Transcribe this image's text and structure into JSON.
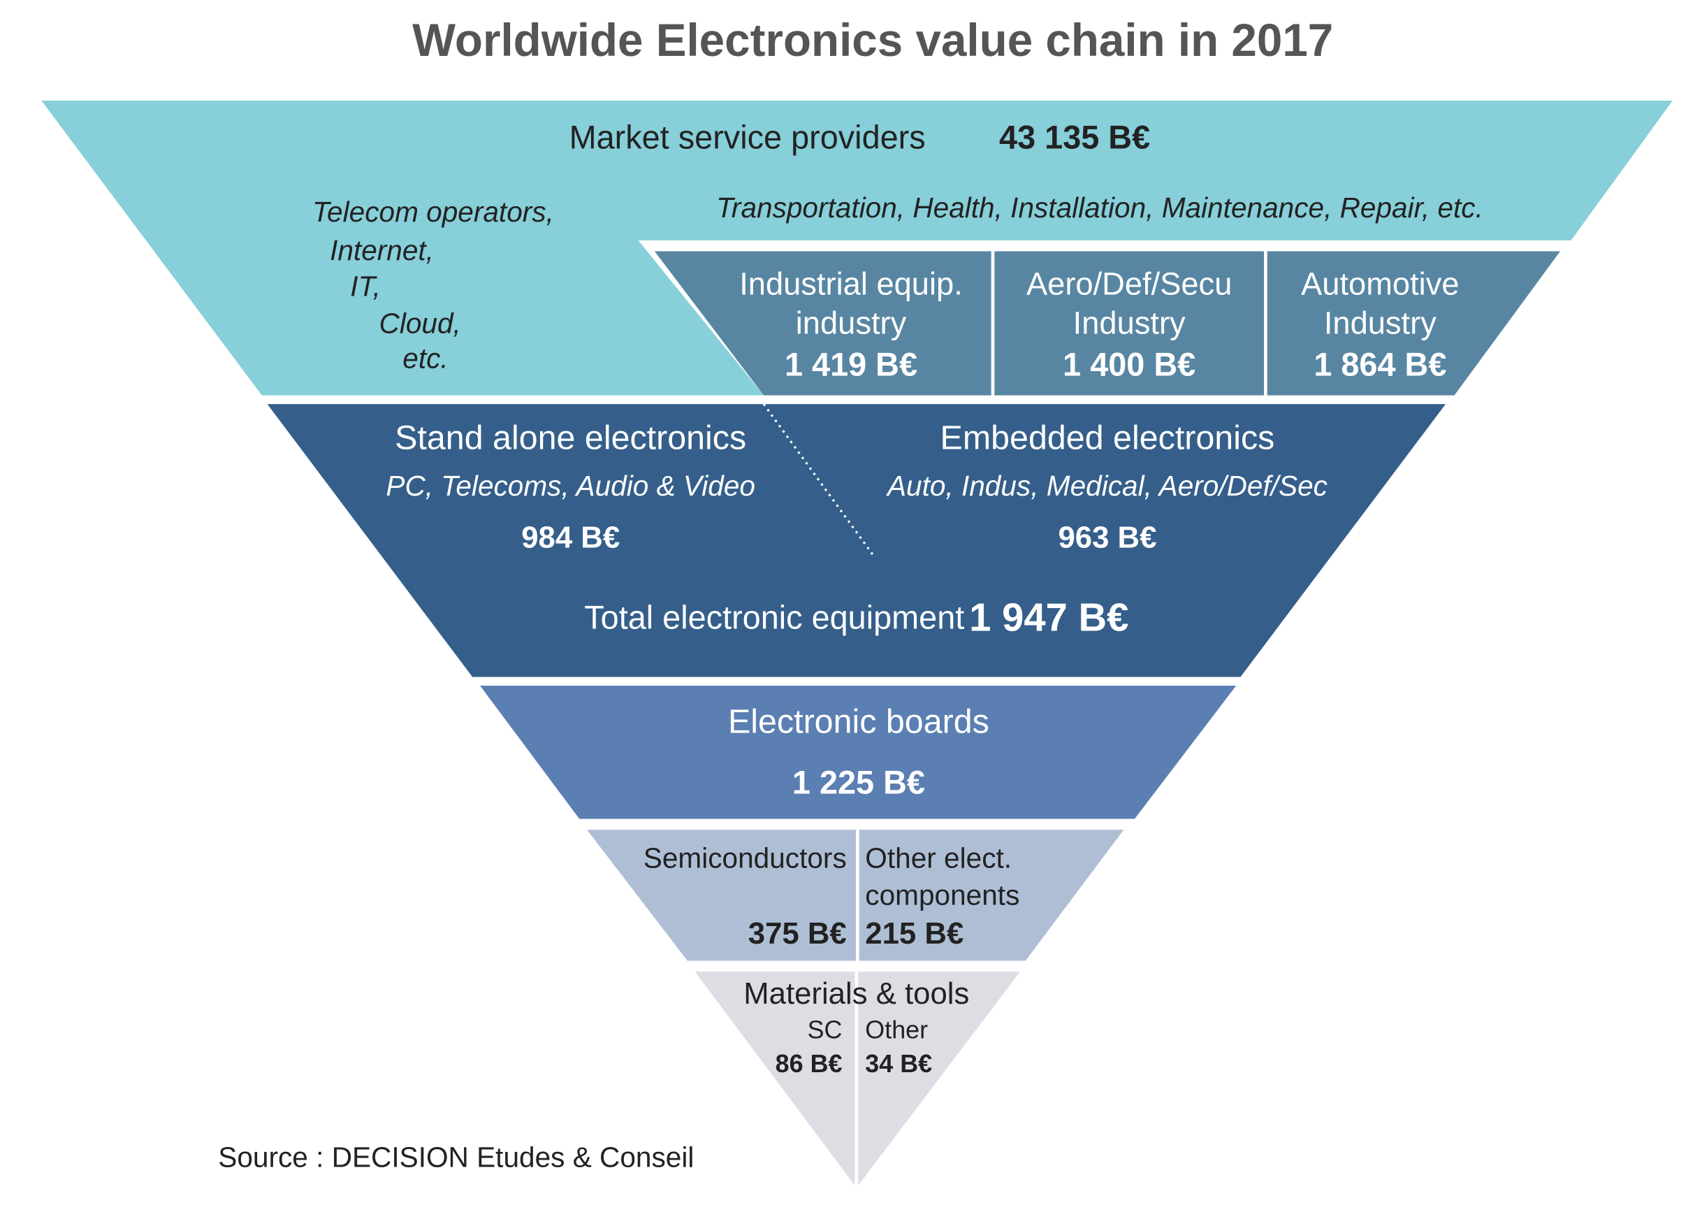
{
  "title": "Worldwide Electronics value chain in 2017",
  "market_services": {
    "label": "Market service providers",
    "value": "43 135 B€",
    "telecom": [
      "Telecom operators,",
      "Internet,",
      "IT,",
      "Cloud,",
      "etc."
    ],
    "other": "Transportation, Health, Installation, Maintenance, Repair, etc."
  },
  "industries": [
    {
      "label": [
        "Industrial equip.",
        "industry"
      ],
      "value": "1 419 B€"
    },
    {
      "label": [
        "Aero/Def/Secu",
        "Industry"
      ],
      "value": "1 400 B€"
    },
    {
      "label": [
        "Automotive",
        "Industry"
      ],
      "value": "1 864 B€"
    }
  ],
  "equipment": {
    "stand_alone": {
      "label": "Stand alone electronics",
      "examples": "PC, Telecoms, Audio & Video",
      "value": "984 B€"
    },
    "embedded": {
      "label": "Embedded electronics",
      "examples": "Auto, Indus, Medical, Aero/Def/Sec",
      "value": "963 B€"
    },
    "total_label": "Total electronic equipment",
    "total_value": "1 947 B€"
  },
  "boards": {
    "label": "Electronic boards",
    "value": "1 225 B€"
  },
  "components": [
    {
      "label": [
        "Semiconductors"
      ],
      "value": "375 B€"
    },
    {
      "label": [
        "Other elect.",
        "components"
      ],
      "value": "215 B€"
    }
  ],
  "materials": {
    "label": "Materials & tools",
    "parts": [
      {
        "label": "SC",
        "value": "86 B€"
      },
      {
        "label": "Other",
        "value": "34 B€"
      }
    ]
  },
  "source": "Source : DECISION Etudes & Conseil"
}
